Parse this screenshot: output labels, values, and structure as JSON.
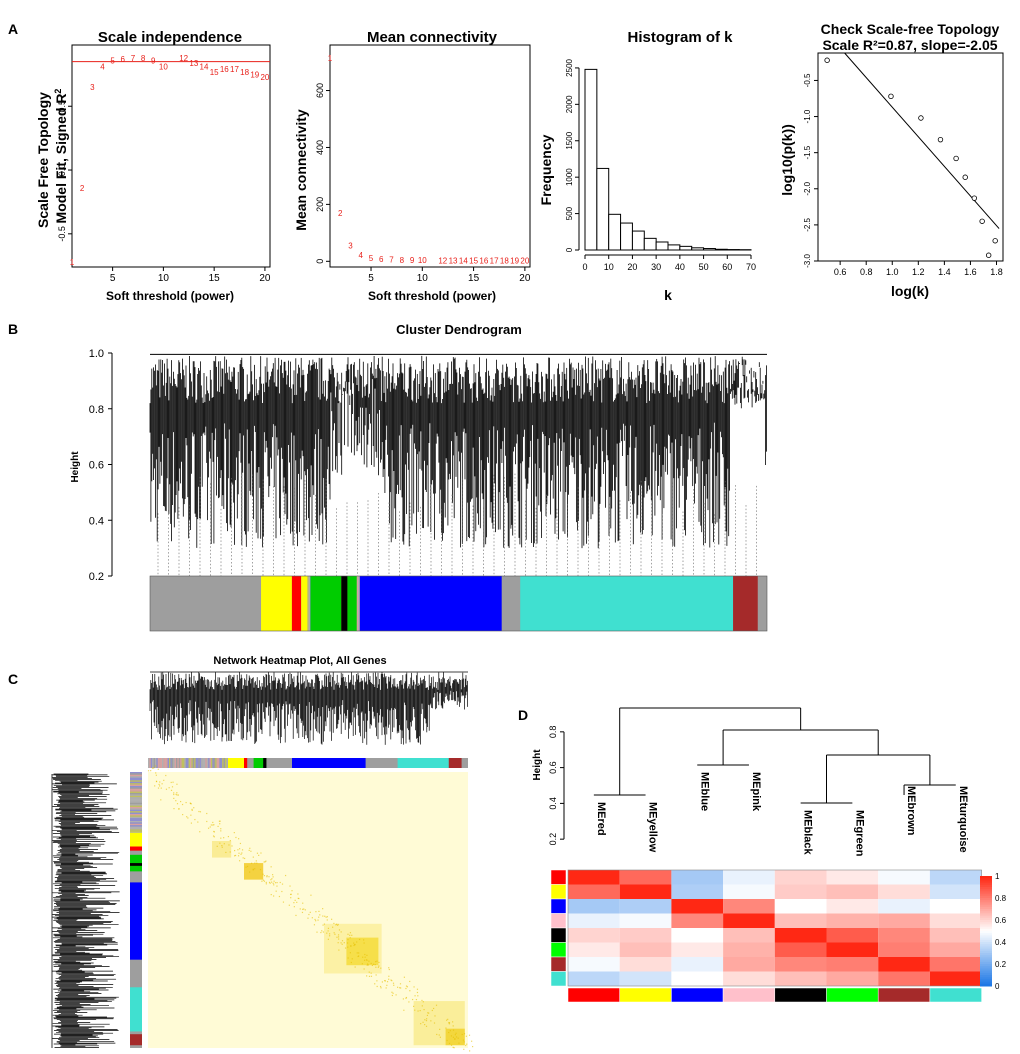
{
  "panel_labels": {
    "a": "A",
    "b": "B",
    "c": "C",
    "d": "D"
  },
  "chart_data": [
    {
      "id": "scale_independence",
      "type": "scatter",
      "title": "Scale independence",
      "xlabel": "Soft threshold (power)",
      "ylabel_line1": "Scale Free Topology",
      "ylabel_line2": "Model Fit, Signed R",
      "ylabel_sup": "2",
      "xlim": [
        1,
        20.5
      ],
      "ylim": [
        -0.76,
        0.98
      ],
      "xticks": [
        5,
        10,
        15,
        20
      ],
      "yticks": [
        -0.5,
        0.0,
        0.5
      ],
      "ytick_labels": [
        "-0.5",
        "0.0",
        "0.5"
      ],
      "hline": 0.85,
      "x": [
        1,
        2,
        3,
        4,
        5,
        6,
        7,
        8,
        9,
        10,
        12,
        13,
        14,
        15,
        16,
        17,
        18,
        19,
        20
      ],
      "y": [
        -0.72,
        -0.14,
        0.65,
        0.81,
        0.86,
        0.87,
        0.88,
        0.88,
        0.86,
        0.81,
        0.88,
        0.84,
        0.81,
        0.77,
        0.79,
        0.79,
        0.77,
        0.75,
        0.73
      ]
    },
    {
      "id": "mean_connectivity",
      "type": "scatter",
      "title": "Mean connectivity",
      "xlabel": "Soft threshold (power)",
      "ylabel": "Mean connectivity",
      "xlim": [
        1,
        20.5
      ],
      "ylim": [
        -20,
        760
      ],
      "xticks": [
        5,
        10,
        15,
        20
      ],
      "yticks": [
        0,
        200,
        400,
        600
      ],
      "x": [
        1,
        2,
        3,
        4,
        5,
        6,
        7,
        8,
        9,
        10,
        12,
        13,
        14,
        15,
        16,
        17,
        18,
        19,
        20
      ],
      "y": [
        715,
        170,
        55,
        22,
        12,
        8,
        6,
        5,
        4,
        4,
        3,
        3,
        3,
        3,
        3,
        3,
        3,
        3,
        3
      ]
    },
    {
      "id": "histogram_k",
      "type": "bar",
      "title": "Histogram of k",
      "xlabel": "k",
      "ylabel": "Frequency",
      "bin_edges": [
        0,
        5,
        10,
        15,
        20,
        25,
        30,
        35,
        40,
        45,
        50,
        55,
        60,
        65,
        70
      ],
      "values": [
        2480,
        1120,
        490,
        370,
        260,
        160,
        110,
        70,
        50,
        30,
        20,
        10,
        6,
        4
      ],
      "xticks": [
        0,
        10,
        20,
        30,
        40,
        50,
        60,
        70
      ],
      "yticks": [
        0,
        500,
        1000,
        1500,
        2000,
        2500
      ],
      "ylim": [
        0,
        2650
      ]
    },
    {
      "id": "check_scale_free",
      "type": "scatter",
      "title_line1": "Check Scale-free Topology",
      "title_line2": "Scale R²=0.87, slope=-2.05",
      "xlabel": "log(k)",
      "ylabel": "log10(p(k))",
      "xlim": [
        0.43,
        1.85
      ],
      "ylim": [
        -3.0,
        -0.12
      ],
      "xticks": [
        0.6,
        0.8,
        1.0,
        1.2,
        1.4,
        1.6,
        1.8
      ],
      "xtick_labels": [
        "0.6",
        "0.8",
        "1.0",
        "1.2",
        "1.4",
        "1.6",
        "1.8"
      ],
      "yticks": [
        -3.0,
        -2.5,
        -2.0,
        -1.5,
        -1.0,
        -0.5
      ],
      "ytick_labels": [
        "-3.0",
        "-2.5",
        "-2.0",
        "-1.5",
        "-1.0",
        "-0.5"
      ],
      "x": [
        0.5,
        0.99,
        1.22,
        1.37,
        1.49,
        1.56,
        1.63,
        1.69,
        1.74,
        1.79
      ],
      "y": [
        -0.22,
        -0.72,
        -1.02,
        -1.32,
        -1.58,
        -1.84,
        -2.13,
        -2.45,
        -2.92,
        -2.72
      ],
      "fit": {
        "slope": -2.05,
        "intercept": 1.18
      }
    },
    {
      "id": "cluster_dendrogram",
      "type": "dendrogram",
      "title": "Cluster Dendrogram",
      "ylabel": "Height",
      "ylim": [
        0.2,
        1.0
      ],
      "yticks": [
        0.2,
        0.4,
        0.6,
        0.8,
        1.0
      ],
      "ytick_labels": [
        "0.2",
        "0.4",
        "0.6",
        "0.8",
        "1.0"
      ],
      "module_segments": [
        {
          "color": "#9e9e9e",
          "from": 0.0,
          "to": 0.18
        },
        {
          "color": "#ffff00",
          "from": 0.18,
          "to": 0.23
        },
        {
          "color": "#ff0000",
          "from": 0.23,
          "to": 0.245
        },
        {
          "color": "#ffff00",
          "from": 0.245,
          "to": 0.255
        },
        {
          "color": "#00cc00",
          "from": 0.26,
          "to": 0.31
        },
        {
          "color": "#000000",
          "from": 0.31,
          "to": 0.32
        },
        {
          "color": "#00cc00",
          "from": 0.32,
          "to": 0.335
        },
        {
          "color": "#0000ff",
          "from": 0.34,
          "to": 0.57
        },
        {
          "color": "#40e0d0",
          "from": 0.6,
          "to": 0.945
        },
        {
          "color": "#a52a2a",
          "from": 0.945,
          "to": 0.985
        }
      ]
    },
    {
      "id": "network_heatmap",
      "type": "heatmap",
      "title": "Network Heatmap Plot, All Genes"
    },
    {
      "id": "eigengene_dendrogram",
      "type": "heatmap",
      "ylabel": "Height",
      "yticks": [
        0.2,
        0.4,
        0.6,
        0.8
      ],
      "ytick_labels": [
        "0.2",
        "0.4",
        "0.6",
        "0.8"
      ],
      "modules": [
        "MEred",
        "MEyellow",
        "MEblue",
        "MEpink",
        "MEblack",
        "MEgreen",
        "MEbrown",
        "MEturquoise"
      ],
      "module_colors": [
        "#ff0000",
        "#ffff00",
        "#0000ff",
        "#ffc0cb",
        "#000000",
        "#00ff00",
        "#a52a2a",
        "#40e0d0"
      ],
      "legend_ticks": [
        "1",
        "0.8",
        "0.6",
        "0.4",
        "0.2",
        "0"
      ],
      "matrix": [
        [
          1.0,
          0.85,
          0.3,
          0.45,
          0.6,
          0.55,
          0.48,
          0.35
        ],
        [
          0.85,
          1.0,
          0.32,
          0.48,
          0.62,
          0.65,
          0.58,
          0.4
        ],
        [
          0.3,
          0.32,
          1.0,
          0.78,
          0.5,
          0.55,
          0.45,
          0.5
        ],
        [
          0.45,
          0.48,
          0.78,
          1.0,
          0.65,
          0.68,
          0.7,
          0.58
        ],
        [
          0.6,
          0.62,
          0.5,
          0.65,
          1.0,
          0.88,
          0.78,
          0.65
        ],
        [
          0.55,
          0.65,
          0.55,
          0.68,
          0.88,
          1.0,
          0.8,
          0.7
        ],
        [
          0.48,
          0.58,
          0.45,
          0.7,
          0.78,
          0.8,
          1.0,
          0.82
        ],
        [
          0.35,
          0.4,
          0.5,
          0.58,
          0.65,
          0.7,
          0.82,
          1.0
        ]
      ]
    }
  ]
}
